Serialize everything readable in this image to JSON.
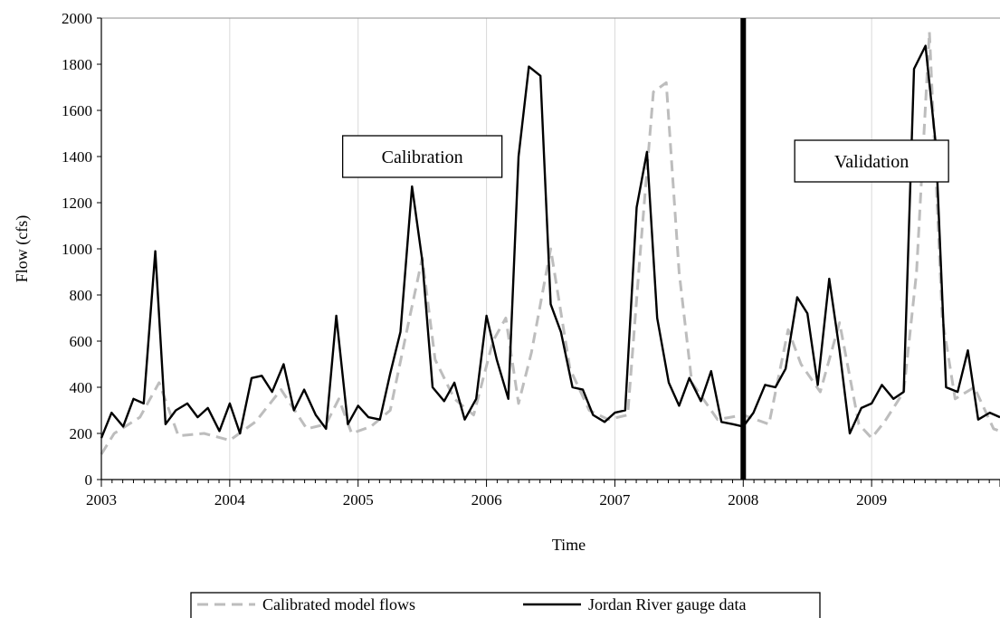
{
  "chart_data": {
    "type": "line",
    "title": "",
    "xlabel": "Time",
    "ylabel": "Flow (cfs)",
    "xlim": [
      2003,
      2010
    ],
    "ylim": [
      0,
      2000
    ],
    "x_ticks": [
      "2003",
      "2004",
      "2005",
      "2006",
      "2007",
      "2008",
      "2009"
    ],
    "y_ticks": [
      "0",
      "200",
      "400",
      "600",
      "800",
      "1000",
      "1200",
      "1400",
      "1600",
      "1800",
      "2000"
    ],
    "grid": "vertical",
    "legend_position": "bottom",
    "divider_x": 2008,
    "annotations": [
      {
        "text": "Calibration",
        "x": 2005.5
      },
      {
        "text": "Validation",
        "x": 2009.0
      }
    ],
    "series": [
      {
        "name": "Calibrated model flows",
        "style": "dashed",
        "color": "#bdbdbd",
        "x": [
          2003.0,
          2003.1,
          2003.3,
          2003.45,
          2003.6,
          2003.8,
          2004.0,
          2004.2,
          2004.4,
          2004.6,
          2004.75,
          2004.85,
          2004.95,
          2005.1,
          2005.25,
          2005.4,
          2005.5,
          2005.6,
          2005.75,
          2005.9,
          2006.05,
          2006.15,
          2006.25,
          2006.35,
          2006.5,
          2006.65,
          2006.8,
          2006.95,
          2007.1,
          2007.2,
          2007.3,
          2007.4,
          2007.5,
          2007.6,
          2007.8,
          2008.0,
          2008.2,
          2008.35,
          2008.45,
          2008.6,
          2008.75,
          2008.9,
          2009.0,
          2009.1,
          2009.25,
          2009.35,
          2009.45,
          2009.55,
          2009.65,
          2009.8,
          2009.95,
          2010.0
        ],
        "values": [
          110,
          200,
          270,
          420,
          190,
          200,
          170,
          250,
          390,
          220,
          240,
          350,
          200,
          230,
          300,
          700,
          960,
          520,
          350,
          280,
          600,
          700,
          330,
          550,
          1000,
          480,
          300,
          260,
          280,
          1000,
          1680,
          1720,
          900,
          420,
          260,
          280,
          240,
          650,
          500,
          380,
          680,
          240,
          180,
          250,
          380,
          900,
          1940,
          700,
          350,
          400,
          220,
          210
        ]
      },
      {
        "name": "Jordan River gauge data",
        "style": "solid",
        "color": "#000000",
        "x": [
          2003.0,
          2003.08,
          2003.17,
          2003.25,
          2003.33,
          2003.42,
          2003.5,
          2003.58,
          2003.67,
          2003.75,
          2003.83,
          2003.92,
          2004.0,
          2004.08,
          2004.17,
          2004.25,
          2004.33,
          2004.42,
          2004.5,
          2004.58,
          2004.67,
          2004.75,
          2004.83,
          2004.92,
          2005.0,
          2005.08,
          2005.17,
          2005.25,
          2005.33,
          2005.42,
          2005.5,
          2005.58,
          2005.67,
          2005.75,
          2005.83,
          2005.92,
          2006.0,
          2006.08,
          2006.17,
          2006.25,
          2006.33,
          2006.42,
          2006.5,
          2006.58,
          2006.67,
          2006.75,
          2006.83,
          2006.92,
          2007.0,
          2007.08,
          2007.17,
          2007.25,
          2007.33,
          2007.42,
          2007.5,
          2007.58,
          2007.67,
          2007.75,
          2007.83,
          2007.92,
          2008.0,
          2008.08,
          2008.17,
          2008.25,
          2008.33,
          2008.42,
          2008.5,
          2008.58,
          2008.67,
          2008.75,
          2008.83,
          2008.92,
          2009.0,
          2009.08,
          2009.17,
          2009.25,
          2009.33,
          2009.42,
          2009.5,
          2009.58,
          2009.67,
          2009.75,
          2009.83,
          2009.92,
          2010.0
        ],
        "values": [
          180,
          290,
          230,
          350,
          330,
          990,
          240,
          300,
          330,
          270,
          310,
          210,
          330,
          200,
          440,
          450,
          380,
          500,
          300,
          390,
          280,
          220,
          710,
          240,
          320,
          270,
          260,
          460,
          640,
          1270,
          950,
          400,
          340,
          420,
          260,
          350,
          710,
          520,
          350,
          1400,
          1790,
          1750,
          760,
          640,
          400,
          390,
          280,
          250,
          290,
          300,
          1180,
          1420,
          700,
          420,
          320,
          440,
          340,
          470,
          250,
          240,
          230,
          290,
          410,
          400,
          480,
          790,
          720,
          410,
          870,
          560,
          200,
          310,
          330,
          410,
          350,
          380,
          1780,
          1880,
          1450,
          400,
          380,
          560,
          260,
          290,
          270
        ]
      }
    ]
  }
}
